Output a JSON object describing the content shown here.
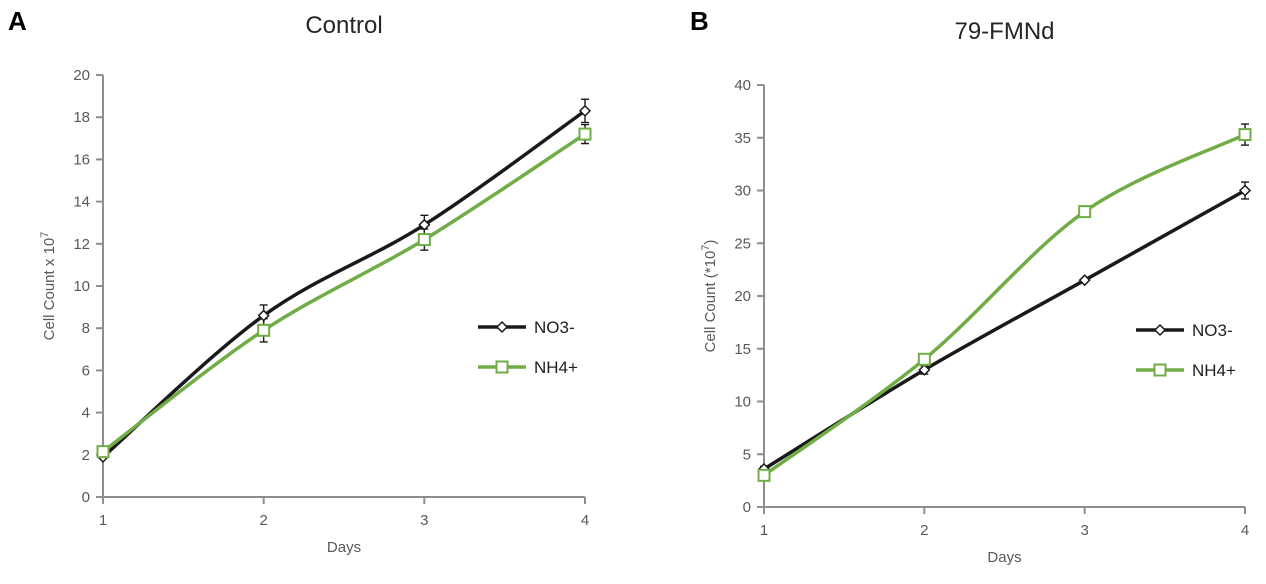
{
  "figure": {
    "background": "#ffffff",
    "panels": [
      {
        "letter": "A",
        "title": "Control"
      },
      {
        "letter": "B",
        "title": "79-FMNd"
      }
    ]
  },
  "chart_data": [
    {
      "type": "line",
      "panel_letter": "A",
      "title": "Control",
      "xlabel": "Days",
      "ylabel": "Cell Count x 10⁷",
      "ylabel_parts": {
        "prefix": "Cell Count x 10",
        "sup": "7",
        "suffix": ""
      },
      "x": [
        1,
        2,
        3,
        4
      ],
      "xticks": [
        1,
        2,
        3,
        4
      ],
      "xlim": [
        1,
        4
      ],
      "ylim": [
        0,
        20
      ],
      "yticks": [
        0,
        2,
        4,
        6,
        8,
        10,
        12,
        14,
        16,
        18,
        20
      ],
      "grid": false,
      "smooth": true,
      "legend_position": "center-right",
      "legend": [
        "NO3-",
        "NH4+"
      ],
      "axis_color": "#8e8e8e",
      "tick_text_color": "#595959",
      "error_bar_color": "#1a1a1a",
      "series": [
        {
          "name": "NO3-",
          "color": "#1a1a1a",
          "marker": "diamond",
          "marker_fill": "#ffffff",
          "values": [
            1.9,
            8.6,
            12.9,
            18.3
          ],
          "errors": [
            0,
            0.5,
            0.45,
            0.55
          ]
        },
        {
          "name": "NH4+",
          "color": "#70AD47",
          "marker": "square",
          "marker_fill": "#ffffff",
          "values": [
            2.15,
            7.9,
            12.2,
            17.2
          ],
          "errors": [
            0,
            0.55,
            0.5,
            0.45
          ]
        }
      ]
    },
    {
      "type": "line",
      "panel_letter": "B",
      "title": "79-FMNd",
      "xlabel": "Days",
      "ylabel": "Cell Count (*10⁷)",
      "ylabel_parts": {
        "prefix": "Cell Count (*10",
        "sup": "7",
        "suffix": ")"
      },
      "x": [
        1,
        2,
        3,
        4
      ],
      "xticks": [
        1,
        2,
        3,
        4
      ],
      "xlim": [
        1,
        4
      ],
      "ylim": [
        0,
        40
      ],
      "yticks": [
        0,
        5,
        10,
        15,
        20,
        25,
        30,
        35,
        40
      ],
      "grid": false,
      "smooth": true,
      "legend_position": "center-right",
      "legend": [
        "NO3-",
        "NH4+"
      ],
      "axis_color": "#8e8e8e",
      "tick_text_color": "#595959",
      "error_bar_color": "#1a1a1a",
      "series": [
        {
          "name": "NO3-",
          "color": "#1a1a1a",
          "marker": "diamond",
          "marker_fill": "#ffffff",
          "values": [
            3.6,
            13.0,
            21.5,
            30.0
          ],
          "errors": [
            0.25,
            0.4,
            0,
            0.8
          ]
        },
        {
          "name": "NH4+",
          "color": "#70AD47",
          "marker": "square",
          "marker_fill": "#ffffff",
          "values": [
            3.0,
            14.0,
            28.0,
            35.3
          ],
          "errors": [
            0.25,
            0.5,
            0,
            1.0
          ]
        }
      ]
    }
  ]
}
